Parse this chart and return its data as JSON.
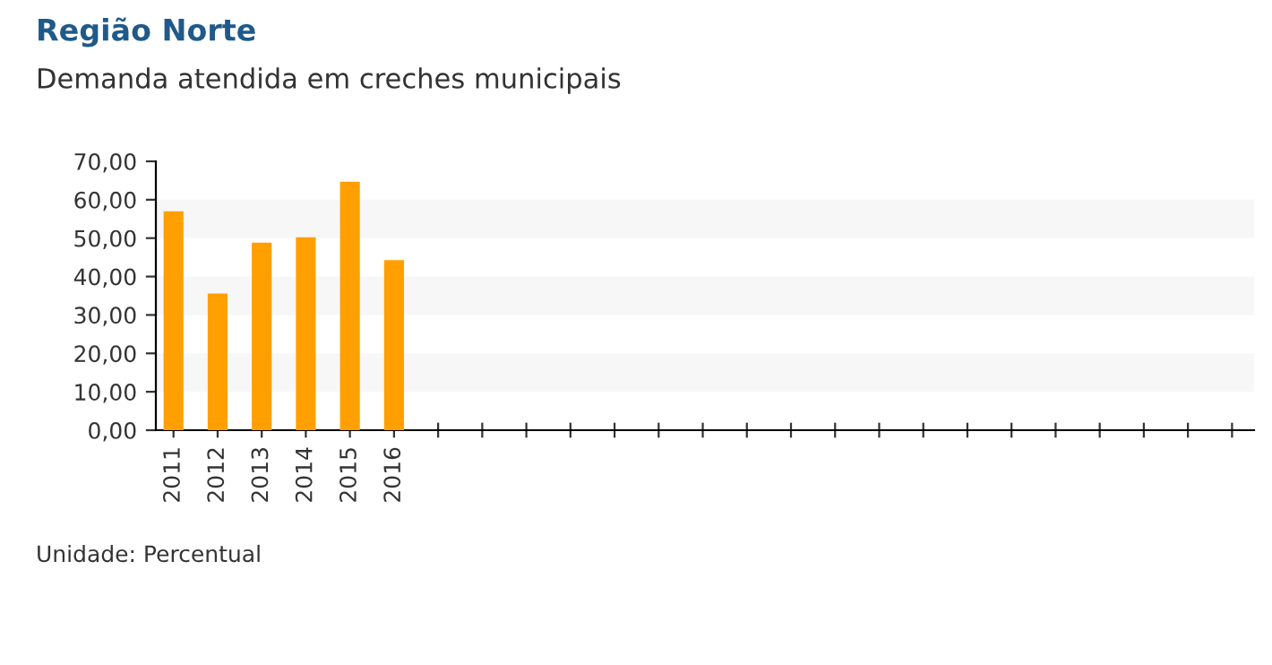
{
  "chart_data": {
    "type": "bar",
    "title": "Região Norte",
    "subtitle": "Demanda atendida em creches municipais",
    "categories": [
      "2011",
      "2012",
      "2013",
      "2014",
      "2015",
      "2016",
      null,
      null,
      null,
      null,
      null,
      null,
      null,
      null,
      null,
      null,
      null,
      null,
      null,
      null,
      null,
      null,
      null,
      null,
      null
    ],
    "values": [
      57.0,
      35.6,
      48.8,
      50.2,
      64.7,
      44.3,
      null,
      null,
      null,
      null,
      null,
      null,
      null,
      null,
      null,
      null,
      null,
      null,
      null,
      null,
      null,
      null,
      null,
      null,
      null
    ],
    "color": "#ff9f00",
    "ylim": [
      0,
      70
    ],
    "yticks": [
      {
        "value": 0,
        "label": "0,00"
      },
      {
        "value": 10,
        "label": "10,00"
      },
      {
        "value": 20,
        "label": "20,00"
      },
      {
        "value": 30,
        "label": "30,00"
      },
      {
        "value": 40,
        "label": "40,00"
      },
      {
        "value": 50,
        "label": "50,00"
      },
      {
        "value": 60,
        "label": "60,00"
      },
      {
        "value": 70,
        "label": "70,00"
      }
    ],
    "bands": [
      {
        "axis": "y",
        "from": 10,
        "to": 20,
        "color": "#f7f7f7"
      },
      {
        "axis": "y",
        "from": 30,
        "to": 40,
        "color": "#f7f7f7"
      },
      {
        "axis": "y",
        "from": 50,
        "to": 60,
        "color": "#f7f7f7"
      }
    ],
    "annotations": [
      "Unidade: Percentual"
    ]
  }
}
